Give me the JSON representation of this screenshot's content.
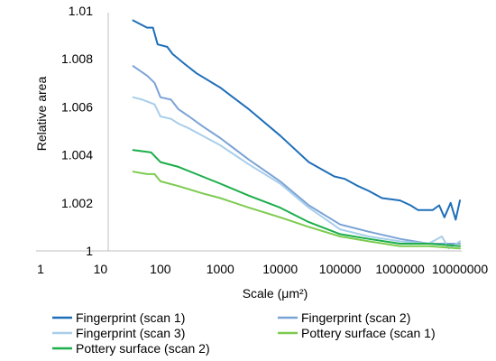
{
  "chart_data": {
    "type": "line",
    "xlabel": "Scale (μm²)",
    "ylabel": "Relative area",
    "xscale": "log",
    "xlim": [
      1,
      10000000
    ],
    "ylim": [
      1,
      1.01
    ],
    "x_ticks": [
      "1",
      "10",
      "100",
      "1000",
      "10000",
      "100000",
      "1000000",
      "10000000"
    ],
    "y_ticks": [
      "1",
      "1.002",
      "1.004",
      "1.006",
      "1.008",
      "1.01"
    ],
    "grid": false,
    "legend_position": "bottom",
    "series": [
      {
        "name": "Fingerprint (scan 1)",
        "color": "#1F6FB8",
        "points": [
          [
            35,
            1.0096
          ],
          [
            50,
            1.0094
          ],
          [
            60,
            1.0093
          ],
          [
            75,
            1.0093
          ],
          [
            90,
            1.0086
          ],
          [
            130,
            1.0085
          ],
          [
            160,
            1.0082
          ],
          [
            250,
            1.0078
          ],
          [
            400,
            1.0074
          ],
          [
            1000,
            1.0068
          ],
          [
            3000,
            1.0059
          ],
          [
            10000,
            1.0048
          ],
          [
            30000,
            1.0037
          ],
          [
            80000,
            1.0031
          ],
          [
            120000,
            1.003
          ],
          [
            200000,
            1.0027
          ],
          [
            300000,
            1.0025
          ],
          [
            500000,
            1.0022
          ],
          [
            1000000,
            1.0021
          ],
          [
            1500000,
            1.0019
          ],
          [
            2000000,
            1.0017
          ],
          [
            3500000,
            1.0017
          ],
          [
            4500000,
            1.0019
          ],
          [
            5500000,
            1.0014
          ],
          [
            7000000,
            1.002
          ],
          [
            8500000,
            1.0013
          ],
          [
            10000000,
            1.0021
          ]
        ]
      },
      {
        "name": "Fingerprint (scan 2)",
        "color": "#7BA3D6",
        "points": [
          [
            35,
            1.0077
          ],
          [
            60,
            1.0073
          ],
          [
            80,
            1.007
          ],
          [
            100,
            1.0064
          ],
          [
            150,
            1.0063
          ],
          [
            200,
            1.0059
          ],
          [
            300,
            1.0056
          ],
          [
            500,
            1.0052
          ],
          [
            1000,
            1.0047
          ],
          [
            3000,
            1.0038
          ],
          [
            10000,
            1.0029
          ],
          [
            30000,
            1.0019
          ],
          [
            100000,
            1.0011
          ],
          [
            300000,
            1.0008
          ],
          [
            1000000,
            1.0005
          ],
          [
            3000000,
            1.0003
          ],
          [
            10000000,
            1.0003
          ]
        ]
      },
      {
        "name": "Fingerprint (scan 3)",
        "color": "#A9CEEA",
        "points": [
          [
            35,
            1.0064
          ],
          [
            50,
            1.0063
          ],
          [
            80,
            1.0061
          ],
          [
            100,
            1.0056
          ],
          [
            150,
            1.0055
          ],
          [
            200,
            1.0053
          ],
          [
            300,
            1.0051
          ],
          [
            500,
            1.0048
          ],
          [
            1000,
            1.0044
          ],
          [
            3000,
            1.0036
          ],
          [
            10000,
            1.0028
          ],
          [
            30000,
            1.0018
          ],
          [
            100000,
            1.0009
          ],
          [
            300000,
            1.0006
          ],
          [
            1000000,
            1.0004
          ],
          [
            3000000,
            1.0003
          ],
          [
            5000000,
            1.0006
          ],
          [
            6500000,
            1.0001
          ],
          [
            10000000,
            1.0004
          ]
        ]
      },
      {
        "name": "Pottery surface (scan 1)",
        "color": "#7DCB4F",
        "points": [
          [
            35,
            1.0033
          ],
          [
            60,
            1.0032
          ],
          [
            80,
            1.0032
          ],
          [
            100,
            1.0029
          ],
          [
            200,
            1.0027
          ],
          [
            500,
            1.0024
          ],
          [
            1000,
            1.0022
          ],
          [
            3000,
            1.0018
          ],
          [
            10000,
            1.0014
          ],
          [
            30000,
            1.001
          ],
          [
            100000,
            1.0006
          ],
          [
            300000,
            1.0004
          ],
          [
            1000000,
            1.0002
          ],
          [
            3000000,
            1.0002
          ],
          [
            10000000,
            1.0001
          ]
        ]
      },
      {
        "name": "Pottery surface (scan 2)",
        "color": "#1BAE4A",
        "points": [
          [
            35,
            1.0042
          ],
          [
            70,
            1.0041
          ],
          [
            100,
            1.0037
          ],
          [
            200,
            1.0035
          ],
          [
            500,
            1.0031
          ],
          [
            1000,
            1.0028
          ],
          [
            3000,
            1.0023
          ],
          [
            10000,
            1.0018
          ],
          [
            30000,
            1.0012
          ],
          [
            100000,
            1.0007
          ],
          [
            300000,
            1.0005
          ],
          [
            1000000,
            1.0003
          ],
          [
            3000000,
            1.0003
          ],
          [
            10000000,
            1.0002
          ]
        ]
      }
    ]
  }
}
